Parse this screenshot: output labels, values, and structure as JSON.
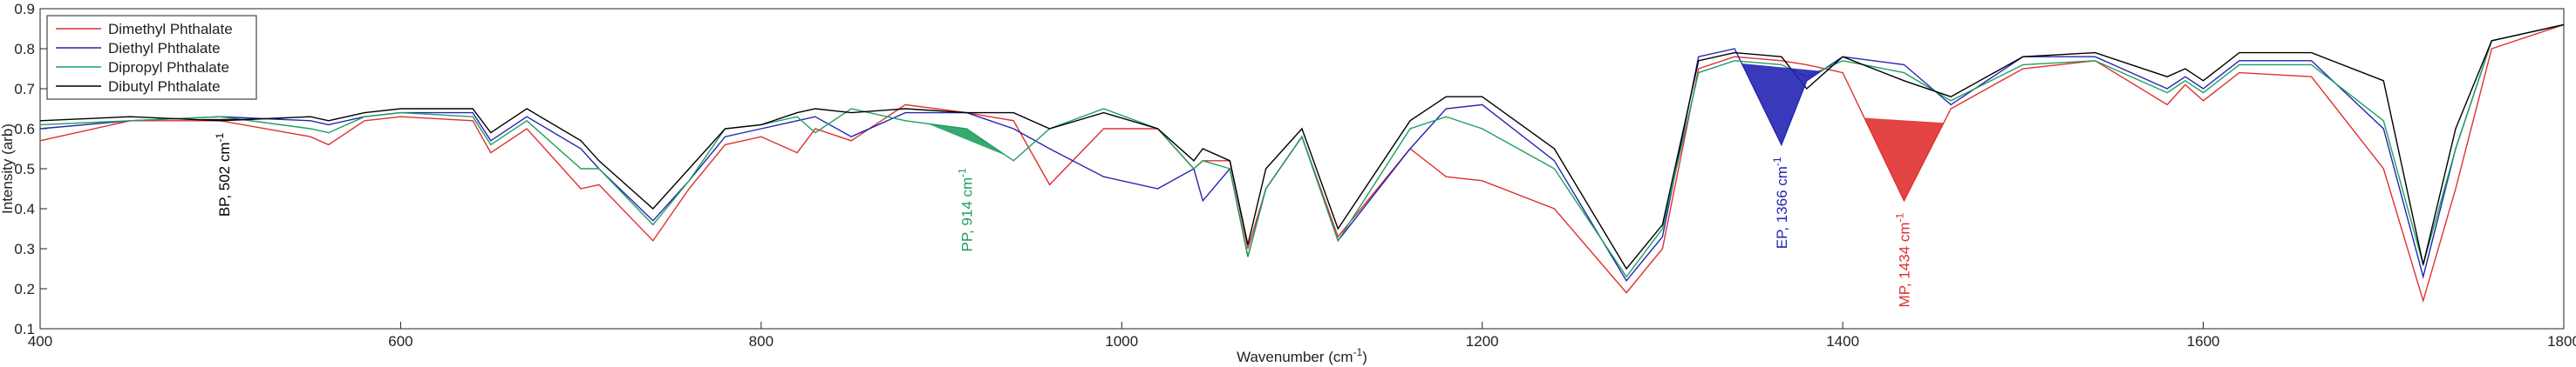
{
  "chart_data": {
    "type": "line",
    "y_label": "Intensity (arb)",
    "x_label": [
      "Wavenumber (cm",
      "-1",
      ")"
    ],
    "x": [
      400,
      450,
      500,
      550,
      560,
      580,
      600,
      640,
      650,
      670,
      700,
      710,
      740,
      760,
      780,
      800,
      820,
      830,
      850,
      880,
      914,
      940,
      960,
      990,
      1020,
      1040,
      1045,
      1060,
      1070,
      1080,
      1100,
      1120,
      1160,
      1180,
      1200,
      1240,
      1280,
      1300,
      1320,
      1340,
      1366,
      1380,
      1400,
      1434,
      1460,
      1500,
      1540,
      1580,
      1590,
      1600,
      1620,
      1660,
      1700,
      1722,
      1740,
      1760,
      1800
    ],
    "series": [
      {
        "name": "Dimethyl Phthalate",
        "color": "#e03030",
        "values": [
          0.57,
          0.62,
          0.62,
          0.58,
          0.56,
          0.62,
          0.63,
          0.62,
          0.54,
          0.6,
          0.45,
          0.46,
          0.32,
          0.45,
          0.56,
          0.58,
          0.54,
          0.6,
          0.57,
          0.66,
          0.64,
          0.62,
          0.46,
          0.6,
          0.6,
          0.5,
          0.52,
          0.52,
          0.3,
          0.45,
          0.58,
          0.33,
          0.55,
          0.48,
          0.47,
          0.4,
          0.19,
          0.3,
          0.75,
          0.78,
          0.77,
          0.76,
          0.74,
          0.42,
          0.65,
          0.75,
          0.77,
          0.66,
          0.71,
          0.67,
          0.74,
          0.73,
          0.5,
          0.17,
          0.45,
          0.8,
          0.86
        ]
      },
      {
        "name": "Diethyl Phthalate",
        "color": "#2424b4",
        "values": [
          0.6,
          0.62,
          0.63,
          0.62,
          0.61,
          0.63,
          0.64,
          0.64,
          0.57,
          0.63,
          0.55,
          0.5,
          0.37,
          0.47,
          0.58,
          0.6,
          0.62,
          0.63,
          0.58,
          0.64,
          0.64,
          0.6,
          0.55,
          0.48,
          0.45,
          0.5,
          0.42,
          0.5,
          0.28,
          0.45,
          0.58,
          0.32,
          0.55,
          0.65,
          0.66,
          0.52,
          0.22,
          0.33,
          0.78,
          0.8,
          0.56,
          0.72,
          0.78,
          0.76,
          0.66,
          0.78,
          0.78,
          0.7,
          0.73,
          0.7,
          0.77,
          0.77,
          0.6,
          0.23,
          0.55,
          0.82,
          0.86
        ]
      },
      {
        "name": "Dipropyl Phthalate",
        "color": "#1fa060",
        "values": [
          0.61,
          0.62,
          0.63,
          0.6,
          0.59,
          0.63,
          0.64,
          0.63,
          0.56,
          0.62,
          0.5,
          0.5,
          0.36,
          0.47,
          0.6,
          0.61,
          0.63,
          0.59,
          0.65,
          0.62,
          0.6,
          0.52,
          0.6,
          0.65,
          0.6,
          0.5,
          0.52,
          0.5,
          0.28,
          0.45,
          0.58,
          0.32,
          0.6,
          0.63,
          0.6,
          0.5,
          0.23,
          0.35,
          0.74,
          0.77,
          0.76,
          0.73,
          0.77,
          0.74,
          0.67,
          0.76,
          0.77,
          0.69,
          0.72,
          0.69,
          0.76,
          0.76,
          0.62,
          0.26,
          0.55,
          0.82,
          0.86
        ]
      },
      {
        "name": "Dibutyl Phthalate",
        "color": "#000000",
        "values": [
          0.62,
          0.63,
          0.62,
          0.63,
          0.62,
          0.64,
          0.65,
          0.65,
          0.59,
          0.65,
          0.57,
          0.52,
          0.4,
          0.5,
          0.6,
          0.61,
          0.64,
          0.65,
          0.64,
          0.65,
          0.64,
          0.64,
          0.6,
          0.64,
          0.6,
          0.52,
          0.55,
          0.52,
          0.31,
          0.5,
          0.6,
          0.35,
          0.62,
          0.68,
          0.68,
          0.55,
          0.25,
          0.36,
          0.77,
          0.79,
          0.78,
          0.7,
          0.78,
          0.72,
          0.68,
          0.78,
          0.79,
          0.73,
          0.75,
          0.72,
          0.79,
          0.79,
          0.72,
          0.26,
          0.6,
          0.82,
          0.86
        ]
      }
    ],
    "annotations": [
      {
        "text": "BP, 502 cm",
        "sup": "-1",
        "x": 502,
        "color": "#000000"
      },
      {
        "text": "PP, 914 cm",
        "sup": "-1",
        "x": 914,
        "color": "#1fa060"
      },
      {
        "text": "EP, 1366 cm",
        "sup": "-1",
        "x": 1366,
        "color": "#2424b4"
      },
      {
        "text": "MP, 1434 cm",
        "sup": "-1",
        "x": 1434,
        "color": "#e03030"
      }
    ],
    "xlim": [
      400,
      1800
    ],
    "xticks": [
      400,
      600,
      800,
      1000,
      1200,
      1400,
      1600,
      1800
    ],
    "ylim": [
      0.1,
      0.9
    ],
    "yticks": [
      0.1,
      0.2,
      0.3,
      0.4,
      0.5,
      0.6,
      0.7,
      0.8,
      0.9
    ],
    "legend": "upper-left",
    "grid": false
  }
}
